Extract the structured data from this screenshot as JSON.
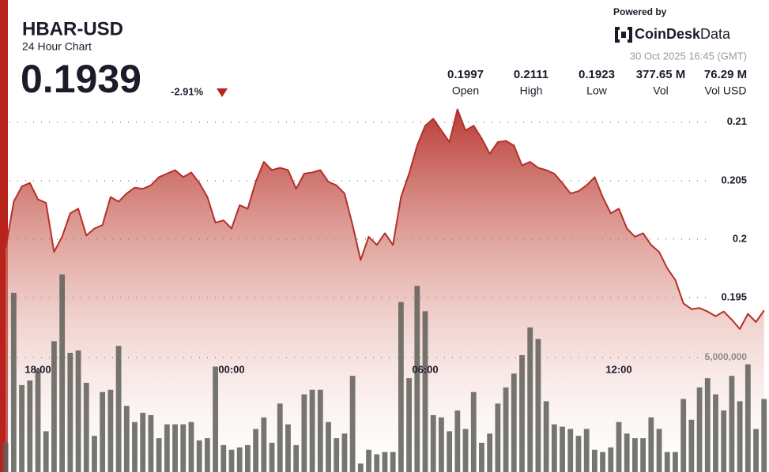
{
  "chart_data": {
    "type": "line",
    "title": "HBAR-USD",
    "subtitle": "24 Hour Chart",
    "price": "0.1939",
    "change": "-2.91%",
    "powered_by": "Powered by",
    "brand": [
      "CoinDesk",
      "Data"
    ],
    "timestamp": "30 Oct 2025 16:45 (GMT)",
    "stats": [
      {
        "value": "0.1997",
        "label": "Open"
      },
      {
        "value": "0.2111",
        "label": "High"
      },
      {
        "value": "0.1923",
        "label": "Low"
      },
      {
        "value": "377.65 M",
        "label": "Vol"
      },
      {
        "value": "76.29 M",
        "label": "Vol USD"
      }
    ],
    "categories": [
      null,
      null,
      null,
      null,
      "18:00",
      null,
      null,
      null,
      null,
      null,
      null,
      null,
      null,
      null,
      null,
      null,
      null,
      null,
      null,
      null,
      null,
      null,
      null,
      null,
      null,
      null,
      null,
      null,
      "00:00",
      null,
      null,
      null,
      null,
      null,
      null,
      null,
      null,
      null,
      null,
      null,
      null,
      null,
      null,
      null,
      null,
      null,
      null,
      null,
      null,
      null,
      null,
      null,
      "06:00",
      null,
      null,
      null,
      null,
      null,
      null,
      null,
      null,
      null,
      null,
      null,
      null,
      null,
      null,
      null,
      null,
      null,
      null,
      null,
      null,
      null,
      null,
      null,
      "12:00",
      null,
      null,
      null,
      null,
      null,
      null,
      null,
      null,
      null,
      null,
      null,
      null,
      null,
      null,
      null,
      null,
      null,
      null
    ],
    "series": [
      {
        "color": "#b5302a",
        "area": true,
        "values": [
          0.1992,
          0.2032,
          0.2045,
          0.2048,
          0.2034,
          0.2031,
          0.1989,
          0.2002,
          0.2022,
          0.2026,
          0.2003,
          0.2009,
          0.2012,
          0.2036,
          0.2032,
          0.2039,
          0.2044,
          0.2043,
          0.2046,
          0.2053,
          0.2056,
          0.2059,
          0.2053,
          0.2057,
          0.2048,
          0.2036,
          0.2014,
          0.2016,
          0.2009,
          0.2029,
          0.2026,
          0.2049,
          0.2066,
          0.2059,
          0.2061,
          0.2059,
          0.2043,
          0.2056,
          0.2057,
          0.2059,
          0.2049,
          0.2046,
          0.2039,
          0.2012,
          0.1982,
          0.2002,
          0.1995,
          0.2005,
          0.1995,
          0.2036,
          0.2056,
          0.208,
          0.2097,
          0.2103,
          0.2093,
          0.2083,
          0.2111,
          0.2093,
          0.2097,
          0.2086,
          0.2073,
          0.2083,
          0.2084,
          0.208,
          0.2063,
          0.2066,
          0.2061,
          0.2059,
          0.2056,
          0.2048,
          0.2039,
          0.2041,
          0.2046,
          0.2053,
          0.2036,
          0.2022,
          0.2026,
          0.2009,
          0.2002,
          0.2005,
          0.1995,
          0.1989,
          0.1975,
          0.1965,
          0.1945,
          0.194,
          0.1941,
          0.1938,
          0.1934,
          0.1938,
          0.1931,
          0.1923,
          0.1936,
          0.1929,
          0.1939
        ]
      },
      {
        "color": "#5e5e58",
        "type": "bar",
        "axis": "y2",
        "values": [
          1300000,
          7800000,
          3800000,
          4000000,
          4500000,
          1800000,
          5700000,
          8600000,
          5200000,
          5300000,
          3900000,
          1600000,
          3500000,
          3600000,
          5500000,
          2900000,
          2200000,
          2600000,
          2500000,
          1500000,
          2100000,
          2100000,
          2100000,
          2200000,
          1400000,
          1500000,
          4600000,
          1200000,
          1000000,
          1100000,
          1200000,
          1900000,
          2400000,
          1300000,
          3000000,
          2100000,
          1200000,
          3400000,
          3600000,
          3600000,
          2200000,
          1500000,
          1700000,
          4200000,
          400000,
          1000000,
          800000,
          900000,
          900000,
          7400000,
          4100000,
          8100000,
          7000000,
          2500000,
          2400000,
          1800000,
          2700000,
          1900000,
          3500000,
          1300000,
          1700000,
          3000000,
          3700000,
          4300000,
          5100000,
          6300000,
          5800000,
          3100000,
          2100000,
          2000000,
          1900000,
          1600000,
          1900000,
          1000000,
          900000,
          1100000,
          2200000,
          1700000,
          1500000,
          1500000,
          2400000,
          1900000,
          900000,
          900000,
          3200000,
          2300000,
          3700000,
          4100000,
          3400000,
          2700000,
          4200000,
          3100000,
          4700000,
          1900000,
          3200000
        ]
      }
    ],
    "ylim": [
      0.18,
      0.211
    ],
    "yticks": [
      0.21,
      0.205,
      0.2,
      0.195
    ],
    "y2lim": [
      0,
      15700000
    ],
    "y2ticks": [
      {
        "value": 5000000,
        "label": "5,000,000"
      }
    ],
    "grid": true
  }
}
